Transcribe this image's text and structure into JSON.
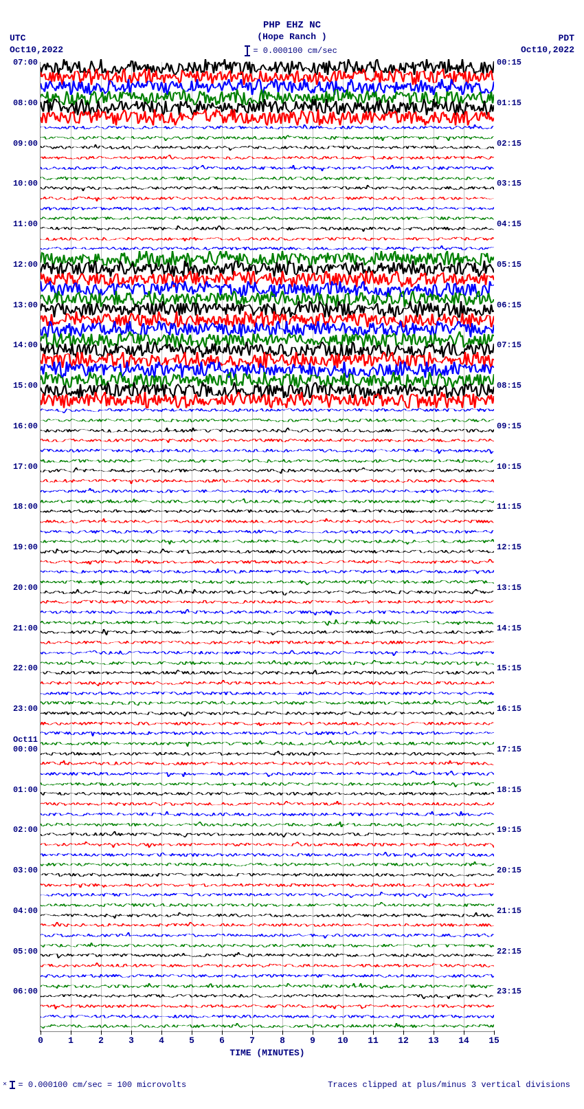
{
  "station": {
    "code": "PHP EHZ NC",
    "name": "(Hope Ranch )"
  },
  "scale": {
    "value": "= 0.000100 cm/sec"
  },
  "tz_left": {
    "label": "UTC",
    "date": "Oct10,2022"
  },
  "tz_right": {
    "label": "PDT",
    "date": "Oct10,2022"
  },
  "plot": {
    "x_min": 0,
    "x_max": 15,
    "x_tick_step": 1,
    "x_title": "TIME (MINUTES)",
    "grid_color": "#c0c0c0",
    "background": "#ffffff",
    "n_traces": 96,
    "trace_colors": [
      "#000000",
      "#ff0000",
      "#0000ff",
      "#008000"
    ],
    "high_amp_ranges": [
      [
        0,
        5
      ],
      [
        19,
        33
      ]
    ],
    "date_break": {
      "index": 68,
      "label": "Oct11"
    },
    "left_labels": [
      {
        "i": 0,
        "t": "07:00"
      },
      {
        "i": 4,
        "t": "08:00"
      },
      {
        "i": 8,
        "t": "09:00"
      },
      {
        "i": 12,
        "t": "10:00"
      },
      {
        "i": 16,
        "t": "11:00"
      },
      {
        "i": 20,
        "t": "12:00"
      },
      {
        "i": 24,
        "t": "13:00"
      },
      {
        "i": 28,
        "t": "14:00"
      },
      {
        "i": 32,
        "t": "15:00"
      },
      {
        "i": 36,
        "t": "16:00"
      },
      {
        "i": 40,
        "t": "17:00"
      },
      {
        "i": 44,
        "t": "18:00"
      },
      {
        "i": 48,
        "t": "19:00"
      },
      {
        "i": 52,
        "t": "20:00"
      },
      {
        "i": 56,
        "t": "21:00"
      },
      {
        "i": 60,
        "t": "22:00"
      },
      {
        "i": 64,
        "t": "23:00"
      },
      {
        "i": 68,
        "t": "00:00"
      },
      {
        "i": 72,
        "t": "01:00"
      },
      {
        "i": 76,
        "t": "02:00"
      },
      {
        "i": 80,
        "t": "03:00"
      },
      {
        "i": 84,
        "t": "04:00"
      },
      {
        "i": 88,
        "t": "05:00"
      },
      {
        "i": 92,
        "t": "06:00"
      }
    ],
    "right_labels": [
      {
        "i": 0,
        "t": "00:15"
      },
      {
        "i": 4,
        "t": "01:15"
      },
      {
        "i": 8,
        "t": "02:15"
      },
      {
        "i": 12,
        "t": "03:15"
      },
      {
        "i": 16,
        "t": "04:15"
      },
      {
        "i": 20,
        "t": "05:15"
      },
      {
        "i": 24,
        "t": "06:15"
      },
      {
        "i": 28,
        "t": "07:15"
      },
      {
        "i": 32,
        "t": "08:15"
      },
      {
        "i": 36,
        "t": "09:15"
      },
      {
        "i": 40,
        "t": "10:15"
      },
      {
        "i": 44,
        "t": "11:15"
      },
      {
        "i": 48,
        "t": "12:15"
      },
      {
        "i": 52,
        "t": "13:15"
      },
      {
        "i": 56,
        "t": "14:15"
      },
      {
        "i": 60,
        "t": "15:15"
      },
      {
        "i": 64,
        "t": "16:15"
      },
      {
        "i": 68,
        "t": "17:15"
      },
      {
        "i": 72,
        "t": "18:15"
      },
      {
        "i": 76,
        "t": "19:15"
      },
      {
        "i": 80,
        "t": "20:15"
      },
      {
        "i": 84,
        "t": "21:15"
      },
      {
        "i": 88,
        "t": "22:15"
      },
      {
        "i": 92,
        "t": "23:15"
      }
    ]
  },
  "footer": {
    "left": "= 0.000100 cm/sec =    100 microvolts",
    "right": "Traces clipped at plus/minus 3 vertical divisions"
  }
}
